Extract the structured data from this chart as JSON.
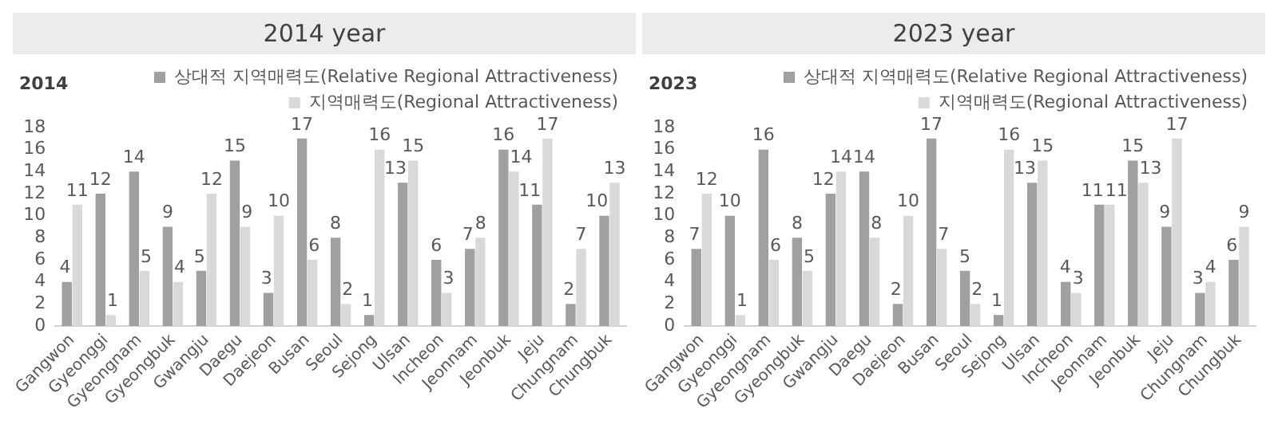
{
  "chart_data": [
    {
      "type": "bar",
      "title": "2014 year",
      "subtitle": "2014",
      "categories": [
        "Gangwon",
        "Gyeonggi",
        "Gyeongnam",
        "Gyeongbuk",
        "Gwangju",
        "Daegu",
        "Daejeon",
        "Busan",
        "Seoul",
        "Sejong",
        "Ulsan",
        "Incheon",
        "Jeonnam",
        "Jeonbuk",
        "Jeju",
        "Chungnam",
        "Chungbuk"
      ],
      "series": [
        {
          "name": "상대적 지역매력도(Relative Regional Attractiveness)",
          "color": "#a0a0a0",
          "values": [
            4,
            12,
            14,
            9,
            5,
            15,
            3,
            17,
            8,
            1,
            13,
            6,
            7,
            16,
            11,
            2,
            10
          ]
        },
        {
          "name": "지역매력도(Regional Attractiveness)",
          "color": "#d9d9d9",
          "values": [
            11,
            1,
            5,
            4,
            12,
            9,
            10,
            6,
            2,
            16,
            15,
            3,
            8,
            14,
            17,
            7,
            13
          ]
        }
      ],
      "ylim": [
        0,
        18
      ],
      "yticks": [
        0,
        2,
        4,
        6,
        8,
        10,
        12,
        14,
        16,
        18
      ],
      "data_labels": true,
      "legend": "top right"
    },
    {
      "type": "bar",
      "title": "2023 year",
      "subtitle": "2023",
      "categories": [
        "Gangwon",
        "Gyeonggi",
        "Gyeongnam",
        "Gyeongbuk",
        "Gwangju",
        "Daegu",
        "Daejeon",
        "Busan",
        "Seoul",
        "Sejong",
        "Ulsan",
        "Incheon",
        "Jeonnam",
        "Jeonbuk",
        "Jeju",
        "Chungnam",
        "Chungbuk"
      ],
      "series": [
        {
          "name": "상대적 지역매력도(Relative Regional Attractiveness)",
          "color": "#a0a0a0",
          "values": [
            7,
            10,
            16,
            8,
            12,
            14,
            2,
            17,
            5,
            1,
            13,
            4,
            11,
            15,
            9,
            3,
            6
          ]
        },
        {
          "name": "지역매력도(Regional Attractiveness)",
          "color": "#d9d9d9",
          "values": [
            12,
            1,
            6,
            5,
            14,
            8,
            10,
            7,
            2,
            16,
            15,
            3,
            11,
            13,
            17,
            4,
            9
          ]
        }
      ],
      "ylim": [
        0,
        18
      ],
      "yticks": [
        0,
        2,
        4,
        6,
        8,
        10,
        12,
        14,
        16,
        18
      ],
      "data_labels": true,
      "legend": "top right"
    }
  ]
}
